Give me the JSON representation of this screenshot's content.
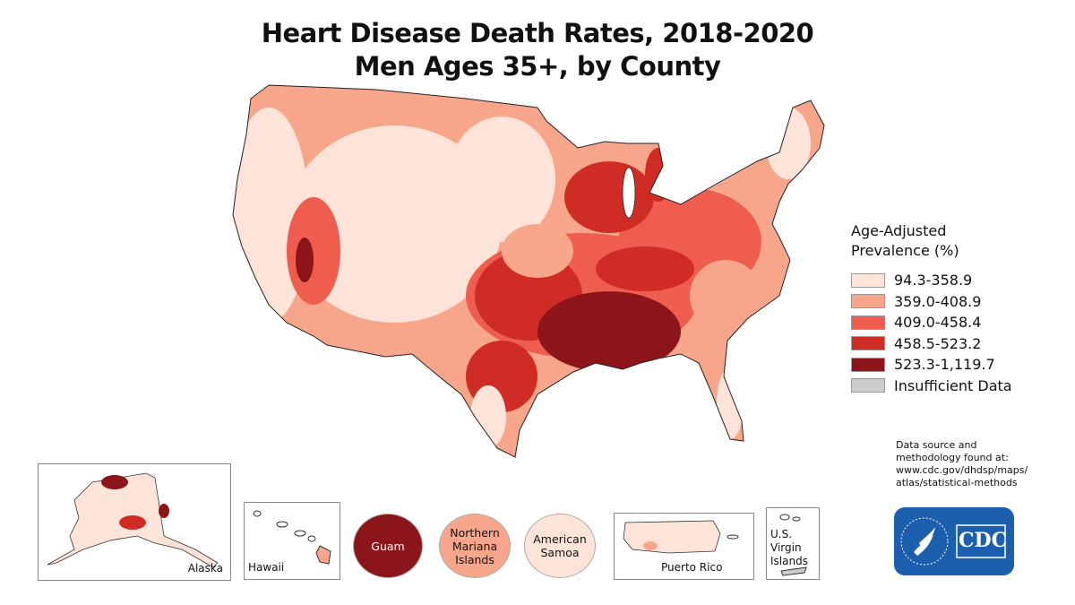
{
  "title": {
    "line1": "Heart Disease Death Rates, 2018-2020",
    "line2": "Men Ages 35+, by County"
  },
  "legend": {
    "title_line1": "Age-Adjusted",
    "title_line2": "Prevalence (%)",
    "items": [
      {
        "label": "94.3-358.9",
        "color": "#fde3d8"
      },
      {
        "label": "359.0-408.9",
        "color": "#f8a68b"
      },
      {
        "label": "409.0-458.4",
        "color": "#ee5d4e"
      },
      {
        "label": "458.5-523.2",
        "color": "#cf2c25"
      },
      {
        "label": "523.3-1,119.7",
        "color": "#8c1519"
      },
      {
        "label": "Insufficient Data",
        "color": "#cccccc"
      }
    ]
  },
  "source": {
    "line1": "Data source and",
    "line2": "methodology found at:",
    "line3": "www.cdc.gov/dhdsp/maps/",
    "line4": "atlas/statistical-methods"
  },
  "insets": {
    "alaska": "Alaska",
    "hawaii": "Hawaii",
    "guam": {
      "label": "Guam",
      "color": "#8c1519"
    },
    "nmi": {
      "line1": "Northern",
      "line2": "Mariana",
      "line3": "Islands",
      "color": "#f8a68b"
    },
    "samoa": {
      "line1": "American",
      "line2": "Samoa",
      "color": "#fde3d8"
    },
    "puerto_rico": "Puerto Rico",
    "usvi": {
      "line1": "U.S. Virgin",
      "line2": "Islands"
    }
  },
  "logo": {
    "text": "CDC",
    "color": "#1b5fae"
  }
}
